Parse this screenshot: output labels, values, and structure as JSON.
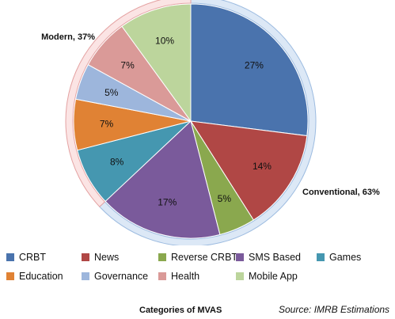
{
  "chart_data": {
    "type": "pie",
    "categories": [
      "CRBT",
      "News",
      "Reverse CRBT",
      "SMS Based",
      "Games",
      "Education",
      "Governance",
      "Health",
      "Mobile App"
    ],
    "values": [
      27,
      14,
      5,
      17,
      8,
      7,
      5,
      7,
      10
    ],
    "value_labels": [
      "27%",
      "14%",
      "5%",
      "17%",
      "8%",
      "7%",
      "5%",
      "7%",
      "10%"
    ],
    "colors": [
      "#4a73ad",
      "#b04745",
      "#8aa84e",
      "#7a5a9b",
      "#4597b0",
      "#e08234",
      "#9db6dc",
      "#da9a98",
      "#bcd59c"
    ],
    "groups": [
      {
        "label": "Conventional, 63%",
        "members": [
          "CRBT",
          "News",
          "Reverse CRBT",
          "SMS Based"
        ],
        "value": 63,
        "ring_color": "#dce8f6",
        "ring_stroke": "#9cbbe0"
      },
      {
        "label": "Modern, 37%",
        "members": [
          "Games",
          "Education",
          "Governance",
          "Health",
          "Mobile App"
        ],
        "value": 37,
        "ring_color": "#fbe4e4",
        "ring_stroke": "#e4a2a2"
      }
    ],
    "legend_placement": "bottom",
    "xlabel": "Categories of MVAS",
    "source": "Source: IMRB Estimations"
  }
}
